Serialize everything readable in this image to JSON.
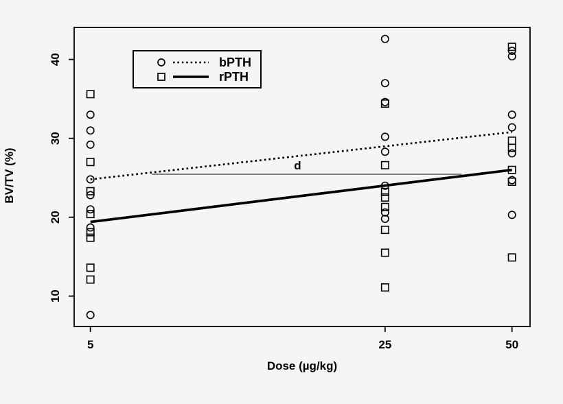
{
  "chart_data": {
    "type": "scatter",
    "title": "",
    "xlabel": "Dose (µg/kg)",
    "ylabel": "BV/TV (%)",
    "x_scale": "log10",
    "x_ticks": [
      5,
      25,
      50
    ],
    "y_ticks": [
      10,
      20,
      30,
      40
    ],
    "xlim": [
      4.1,
      55
    ],
    "ylim": [
      6.1,
      44.1
    ],
    "grid": "off",
    "legend_position": "top-left-inset",
    "series": [
      {
        "name": "bPTH",
        "marker": "circle",
        "line_style": "dotted",
        "points": [
          [
            5,
            33.0
          ],
          [
            5,
            31.0
          ],
          [
            5,
            29.2
          ],
          [
            5,
            24.8
          ],
          [
            5,
            22.8
          ],
          [
            5,
            21.0
          ],
          [
            5,
            18.7
          ],
          [
            5,
            7.6
          ],
          [
            25,
            42.6
          ],
          [
            25,
            37.0
          ],
          [
            25,
            34.6
          ],
          [
            25,
            30.2
          ],
          [
            25,
            28.3
          ],
          [
            25,
            24.0
          ],
          [
            25,
            20.6
          ],
          [
            25,
            19.8
          ],
          [
            50,
            41.1
          ],
          [
            50,
            40.4
          ],
          [
            50,
            33.0
          ],
          [
            50,
            31.4
          ],
          [
            50,
            28.1
          ],
          [
            50,
            24.7
          ],
          [
            50,
            20.3
          ]
        ],
        "fit_line": {
          "x1": 5,
          "y1": 24.8,
          "x2": 50,
          "y2": 30.8
        }
      },
      {
        "name": "rPTH",
        "marker": "square",
        "line_style": "solid",
        "points": [
          [
            5,
            35.6
          ],
          [
            5,
            27.0
          ],
          [
            5,
            23.3
          ],
          [
            5,
            20.4
          ],
          [
            5,
            18.1
          ],
          [
            5,
            17.4
          ],
          [
            5,
            13.6
          ],
          [
            5,
            12.1
          ],
          [
            25,
            34.4
          ],
          [
            25,
            26.6
          ],
          [
            25,
            23.2
          ],
          [
            25,
            22.5
          ],
          [
            25,
            21.3
          ],
          [
            25,
            18.4
          ],
          [
            25,
            15.5
          ],
          [
            25,
            11.1
          ],
          [
            50,
            41.6
          ],
          [
            50,
            29.7
          ],
          [
            50,
            28.8
          ],
          [
            50,
            26.0
          ],
          [
            50,
            24.5
          ],
          [
            50,
            14.9
          ]
        ],
        "fit_line": {
          "x1": 5,
          "y1": 19.4,
          "x2": 50,
          "y2": 26.0
        }
      }
    ],
    "annotation": {
      "label": "d",
      "line_value": 25.45,
      "dose_from": 7.0,
      "dose_to": 38.0,
      "label_dose": 15.5,
      "label_value": 26.6
    }
  },
  "colors": {
    "foreground": "#000000",
    "background": "#f5f5f4",
    "annotation_line": "#3a3a3a"
  }
}
